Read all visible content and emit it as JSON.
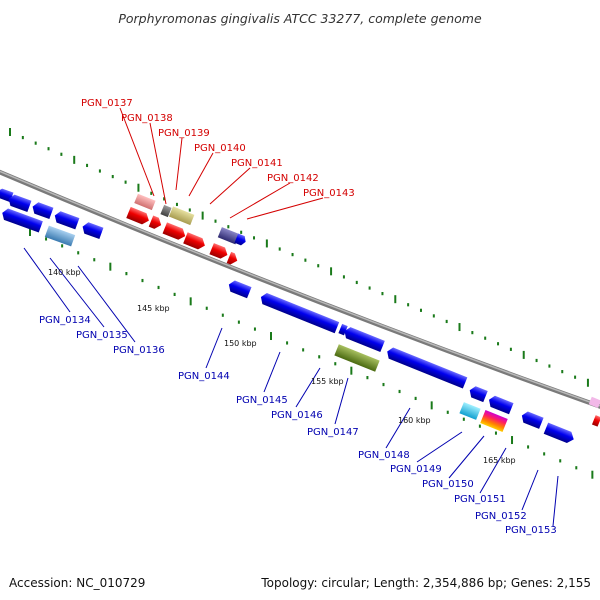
{
  "title": "Porphyromonas gingivalis ATCC 33277, complete genome",
  "accession": "Accession: NC_010729",
  "topology": "Topology: circular; Length: 2,354,886 bp; Genes: 2,155",
  "colors": {
    "upper_gene_label": "#d40000",
    "lower_gene_label": "#0000b0",
    "backbone": "#888888",
    "tick": "#1a7a1a",
    "forward_gene": "#ee0000",
    "reverse_gene": "#0000ee"
  },
  "upper_labels": [
    "PGN_0137",
    "PGN_0138",
    "PGN_0139",
    "PGN_0140",
    "PGN_0141",
    "PGN_0142",
    "PGN_0143"
  ],
  "lower_labels": [
    "PGN_0134",
    "PGN_0135",
    "PGN_0136",
    "PGN_0144",
    "PGN_0145",
    "PGN_0146",
    "PGN_0147",
    "PGN_0148",
    "PGN_0149",
    "PGN_0150",
    "PGN_0151",
    "PGN_0152",
    "PGN_0153"
  ],
  "kbp_labels": [
    "140 kbp",
    "145 kbp",
    "150 kbp",
    "155 kbp",
    "160 kbp",
    "165 kbp"
  ]
}
